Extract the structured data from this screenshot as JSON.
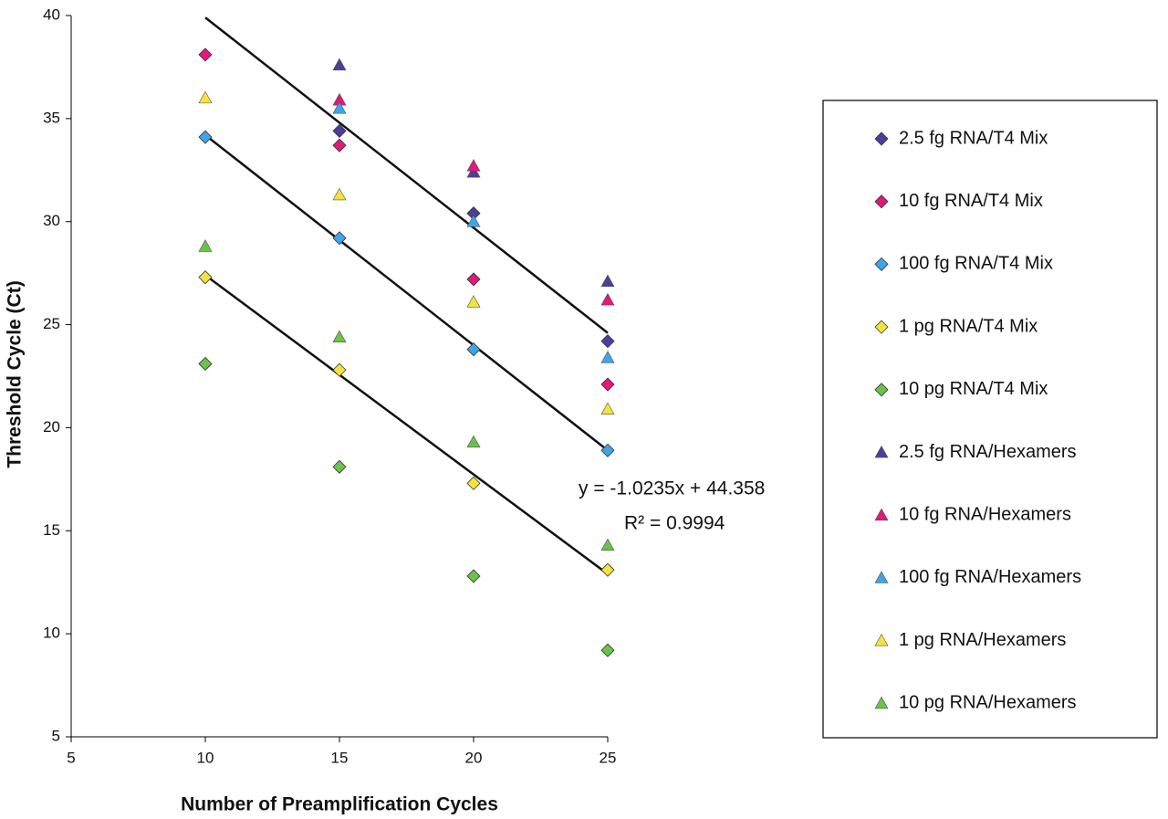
{
  "chart_data": {
    "type": "scatter",
    "x_label": "Number of Preamplification Cycles",
    "y_label": "Threshold Cycle (Ct)",
    "xlim": [
      5,
      25
    ],
    "xticks": [
      5,
      10,
      15,
      20,
      25
    ],
    "ylim": [
      5,
      40
    ],
    "yticks": [
      5,
      10,
      15,
      20,
      25,
      30,
      35,
      40
    ],
    "x": [
      10,
      15,
      20,
      25
    ],
    "series": [
      {
        "name": "2.5 fg RNA/T4 Mix",
        "color": "#4b3f9b",
        "marker": "diamond",
        "values": [
          null,
          34.4,
          30.4,
          24.2
        ]
      },
      {
        "name": "10 fg RNA/T4 Mix",
        "color": "#e0197a",
        "marker": "diamond",
        "values": [
          38.1,
          33.7,
          27.2,
          22.1
        ]
      },
      {
        "name": "100 fg RNA/T4 Mix",
        "color": "#3fa4e8",
        "marker": "diamond",
        "values": [
          34.1,
          29.2,
          23.8,
          18.9
        ]
      },
      {
        "name": "1 pg RNA/T4 Mix",
        "color": "#f5e23c",
        "marker": "diamond",
        "values": [
          27.3,
          22.8,
          17.3,
          13.1
        ]
      },
      {
        "name": "10 pg RNA/T4 Mix",
        "color": "#6cc24a",
        "marker": "diamond",
        "values": [
          23.1,
          18.1,
          12.8,
          9.2
        ]
      },
      {
        "name": "2.5 fg RNA/Hexamers",
        "color": "#4b3f9b",
        "marker": "triangle",
        "values": [
          null,
          37.6,
          32.4,
          27.1
        ]
      },
      {
        "name": "10 fg RNA/Hexamers",
        "color": "#e0197a",
        "marker": "triangle",
        "values": [
          null,
          35.9,
          32.7,
          26.2
        ]
      },
      {
        "name": "100 fg RNA/Hexamers",
        "color": "#3fa4e8",
        "marker": "triangle",
        "values": [
          null,
          35.5,
          30.0,
          23.4
        ]
      },
      {
        "name": "1 pg RNA/Hexamers",
        "color": "#f5e23c",
        "marker": "triangle",
        "values": [
          36.0,
          31.3,
          26.1,
          20.9
        ]
      },
      {
        "name": "10 pg RNA/Hexamers",
        "color": "#6cc24a",
        "marker": "triangle",
        "values": [
          28.8,
          24.4,
          19.3,
          14.3
        ]
      }
    ],
    "trendlines": [
      {
        "x": [
          10,
          25
        ],
        "values": [
          39.9,
          24.6
        ]
      },
      {
        "x": [
          10,
          25
        ],
        "values": [
          34.2,
          18.9
        ]
      },
      {
        "x": [
          10,
          25
        ],
        "values": [
          27.4,
          12.9
        ]
      }
    ],
    "annotations": [
      "y = -1.0235x + 44.358",
      "R² = 0.9994"
    ]
  }
}
